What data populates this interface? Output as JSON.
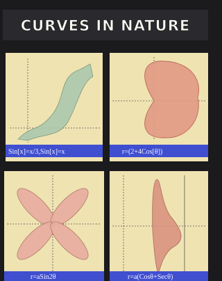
{
  "title": "CURVES IN NATURE",
  "panels": [
    {
      "caption": "Sin[x]=x/3,Sin[x]=x"
    },
    {
      "caption": "r=(2+4Cos[θ])"
    },
    {
      "caption": "r=aSin2θ"
    },
    {
      "caption": "r=a(Cosθ+Secθ)"
    }
  ]
}
